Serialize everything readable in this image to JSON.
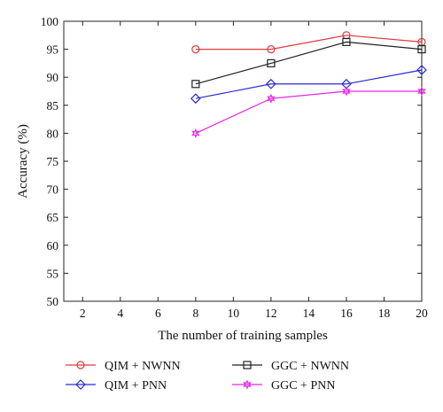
{
  "chart_data": {
    "type": "line",
    "xlabel": "The number of training samples",
    "ylabel": "Accuracy (%)",
    "xlim": [
      1,
      20
    ],
    "ylim": [
      50,
      100
    ],
    "xticks": [
      2,
      4,
      6,
      8,
      10,
      12,
      14,
      16,
      18,
      20
    ],
    "yticks": [
      50,
      55,
      60,
      65,
      70,
      75,
      80,
      85,
      90,
      95,
      100
    ],
    "grid": false,
    "legend_position": "below",
    "series": [
      {
        "name": "QIM + NWNN",
        "color": "#e0393b",
        "marker": "circle",
        "x": [
          8,
          12,
          16,
          20
        ],
        "y": [
          95.0,
          95.0,
          97.5,
          96.3
        ]
      },
      {
        "name": "GGC + NWNN",
        "color": "#222222",
        "marker": "square",
        "x": [
          8,
          12,
          16,
          20
        ],
        "y": [
          88.8,
          92.5,
          96.3,
          95.0
        ]
      },
      {
        "name": "QIM + PNN",
        "color": "#2b2bd6",
        "marker": "diamond",
        "x": [
          8,
          12,
          16,
          20
        ],
        "y": [
          86.2,
          88.8,
          88.8,
          91.3
        ]
      },
      {
        "name": "GGC + PNN",
        "color": "#e825e8",
        "marker": "star",
        "x": [
          8,
          12,
          16,
          20
        ],
        "y": [
          80.0,
          86.2,
          87.5,
          87.5
        ]
      }
    ]
  }
}
